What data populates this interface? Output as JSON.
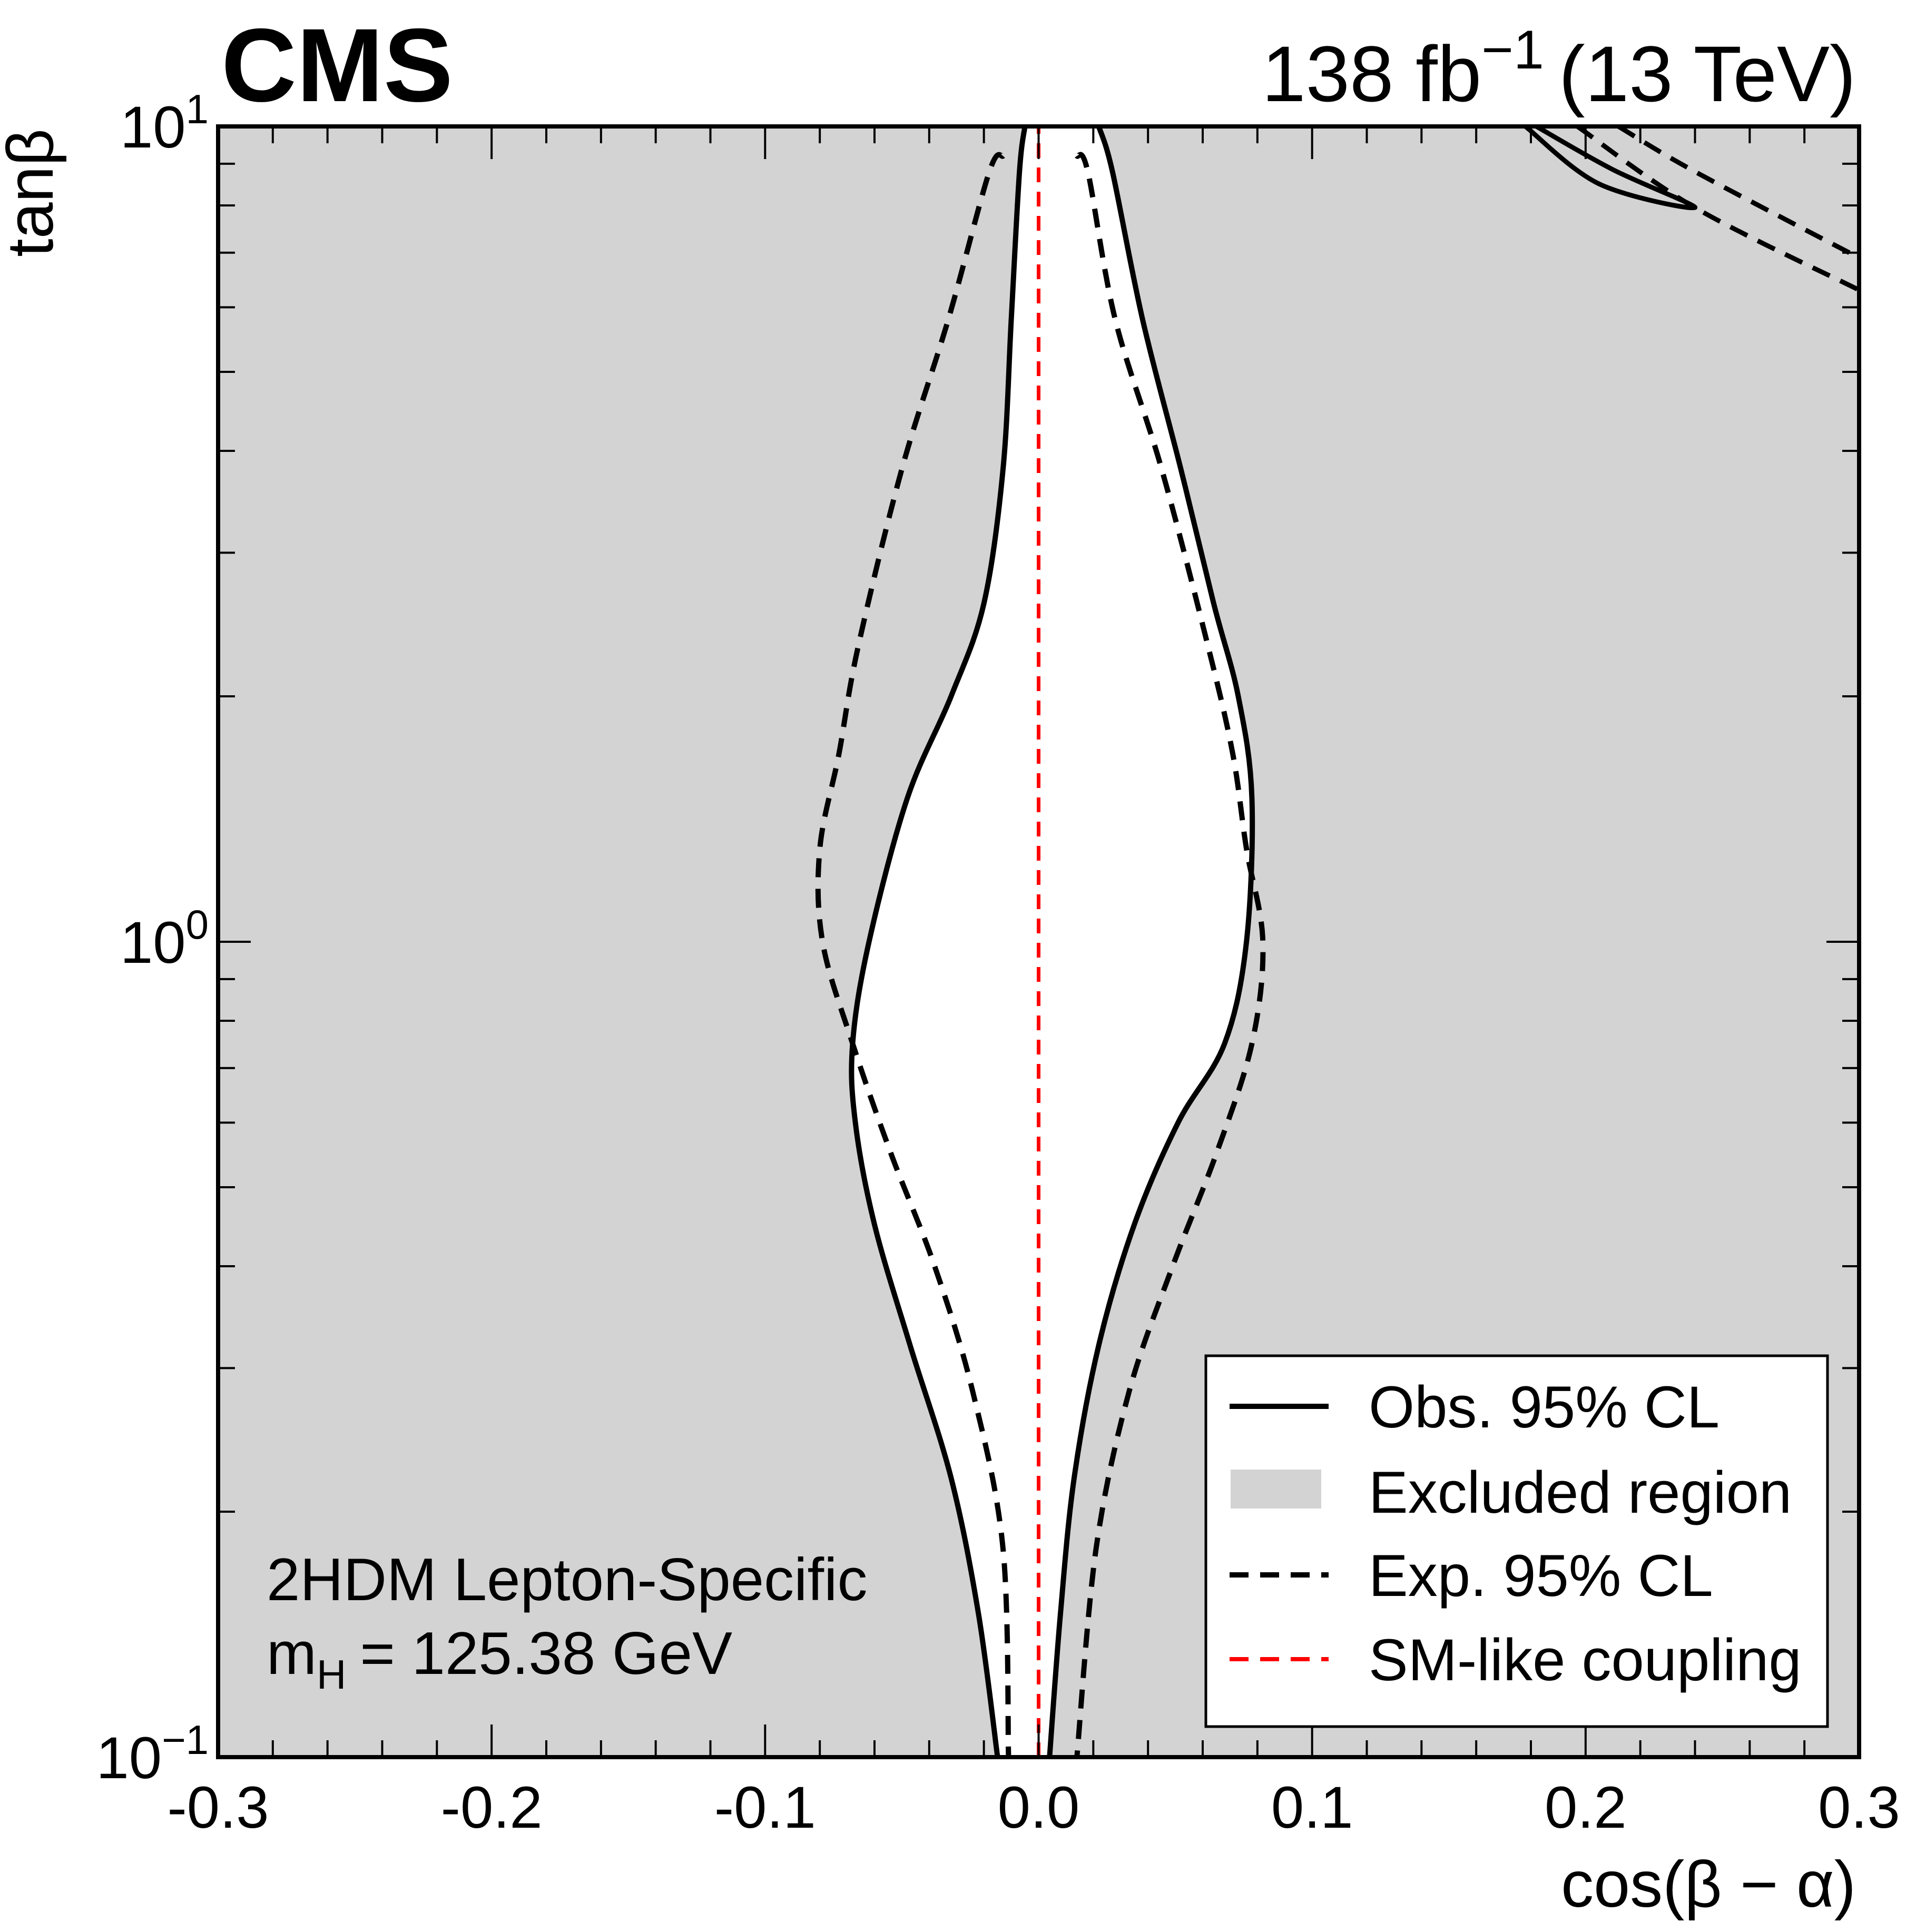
{
  "header": {
    "experiment": "CMS",
    "lumi_value": "138 fb",
    "lumi_exp": "−1",
    "energy": "(13 TeV)"
  },
  "annotation": {
    "model": "2HDM Lepton-Specific",
    "mass_symbol": "m",
    "mass_sub": "H",
    "mass_value": "= 125.38 GeV"
  },
  "legend": {
    "obs": "Obs. 95% CL",
    "excluded": "Excluded region",
    "exp": "Exp. 95% CL",
    "sm": "SM-like coupling"
  },
  "colors": {
    "excluded": "#d3d3d3",
    "allowed": "#ffffff",
    "obs_line": "#000000",
    "exp_line": "#000000",
    "sm_line": "#ff0000"
  },
  "chart_data": {
    "type": "line",
    "xlabel": "cos(β − α)",
    "ylabel": "tanβ",
    "xlim": [
      -0.3,
      0.3
    ],
    "ylim": [
      0.1,
      10
    ],
    "yscale": "log",
    "x_ticks": [
      {
        "value": -0.3,
        "label": "-0.3"
      },
      {
        "value": -0.2,
        "label": "-0.2"
      },
      {
        "value": -0.1,
        "label": "-0.1"
      },
      {
        "value": 0.0,
        "label": "0.0"
      },
      {
        "value": 0.1,
        "label": "0.1"
      },
      {
        "value": 0.2,
        "label": "0.2"
      },
      {
        "value": 0.3,
        "label": "0.3"
      }
    ],
    "y_ticks": [
      {
        "value": 0.1,
        "base": "10",
        "exp": "−1"
      },
      {
        "value": 1,
        "base": "10",
        "exp": "0"
      },
      {
        "value": 10,
        "base": "10",
        "exp": "1"
      }
    ],
    "grid": false,
    "legend_position": "bottom-right",
    "series": [
      {
        "name": "Obs. 95% CL",
        "style": "solid",
        "role": "allowed-region-boundary",
        "left_x": [
          -0.005,
          -0.007,
          -0.01,
          -0.013,
          -0.02,
          -0.032,
          -0.048,
          -0.062,
          -0.068,
          -0.067,
          -0.06,
          -0.047,
          -0.032,
          -0.022,
          -0.015
        ],
        "right_x": [
          0.022,
          0.027,
          0.038,
          0.052,
          0.064,
          0.073,
          0.078,
          0.076,
          0.068,
          0.051,
          0.035,
          0.022,
          0.013,
          0.008,
          0.004
        ],
        "y": [
          10,
          8.8,
          5.8,
          3.8,
          2.6,
          2.0,
          1.5,
          1.0,
          0.75,
          0.6,
          0.45,
          0.32,
          0.22,
          0.15,
          0.1
        ]
      },
      {
        "name": "Exp. 95% CL",
        "style": "dashed",
        "left_x": [
          -0.013,
          -0.018,
          -0.033,
          -0.05,
          -0.066,
          -0.073,
          -0.08,
          -0.079,
          -0.068,
          -0.054,
          -0.038,
          -0.024,
          -0.013,
          -0.011
        ],
        "right_x": [
          0.014,
          0.018,
          0.028,
          0.045,
          0.062,
          0.071,
          0.076,
          0.082,
          0.078,
          0.065,
          0.049,
          0.033,
          0.021,
          0.014
        ],
        "y": [
          9.2,
          8.8,
          5.8,
          3.8,
          2.3,
          1.7,
          1.3,
          1.0,
          0.75,
          0.55,
          0.4,
          0.28,
          0.18,
          0.1
        ]
      },
      {
        "name": "SM-like coupling",
        "style": "dashed",
        "x": [
          0,
          0
        ],
        "y": [
          0.1,
          10
        ]
      }
    ],
    "corner_contours": [
      {
        "style": "solid",
        "x": [
          0.182,
          0.21,
          0.24,
          0.205,
          0.178
        ],
        "y": [
          10,
          8.85,
          7.95,
          8.5,
          10
        ]
      },
      {
        "style": "dashed",
        "x": [
          0.197,
          0.24,
          0.3
        ],
        "y": [
          10,
          7.95,
          6.3
        ]
      },
      {
        "style": "dashed",
        "x": [
          0.212,
          0.24,
          0.3
        ],
        "y": [
          10,
          8.8,
          6.9
        ]
      }
    ]
  }
}
